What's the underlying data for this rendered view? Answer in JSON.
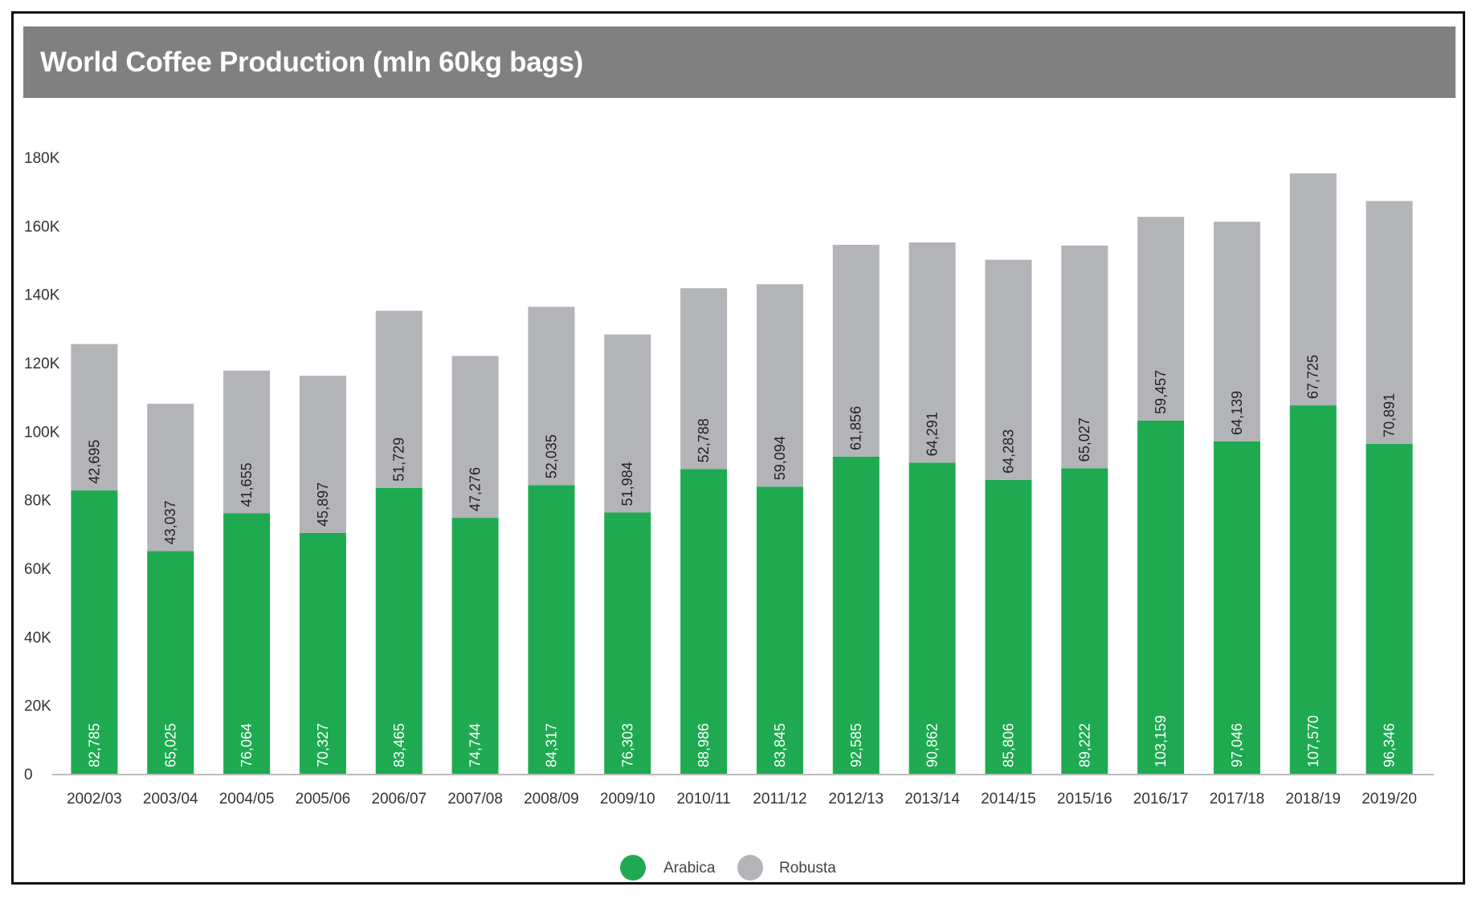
{
  "title": "World Coffee Production (mln 60kg bags)",
  "colors": {
    "arabica": "#1faa52",
    "robusta": "#b3b4b7",
    "title_bar": "#7f807f",
    "axis": "#bbbbbb"
  },
  "chart_data": {
    "type": "bar",
    "stacked": true,
    "title": "World Coffee Production (mln 60kg bags)",
    "categories": [
      "2002/03",
      "2003/04",
      "2004/05",
      "2005/06",
      "2006/07",
      "2007/08",
      "2008/09",
      "2009/10",
      "2010/11",
      "2011/12",
      "2012/13",
      "2013/14",
      "2014/15",
      "2015/16",
      "2016/17",
      "2017/18",
      "2018/19",
      "2019/20"
    ],
    "series": [
      {
        "name": "Arabica",
        "values": [
          82785,
          65025,
          76064,
          70327,
          83465,
          74744,
          84317,
          76303,
          88986,
          83845,
          92585,
          90862,
          85806,
          89222,
          103159,
          97046,
          107570,
          96346
        ],
        "labels": [
          "82,785",
          "65,025",
          "76,064",
          "70,327",
          "83,465",
          "74,744",
          "84,317",
          "76,303",
          "88,986",
          "83,845",
          "92,585",
          "90,862",
          "85,806",
          "89,222",
          "103,159",
          "97,046",
          "107,570",
          "96,346"
        ]
      },
      {
        "name": "Robusta",
        "values": [
          42695,
          43037,
          41655,
          45897,
          51729,
          47276,
          52035,
          51984,
          52788,
          59094,
          61856,
          64291,
          64283,
          65027,
          59457,
          64139,
          67725,
          70891
        ],
        "labels": [
          "42,695",
          "43,037",
          "41,655",
          "45,897",
          "51,729",
          "47,276",
          "52,035",
          "51,984",
          "52,788",
          "59,094",
          "61,856",
          "64,291",
          "64,283",
          "65,027",
          "59,457",
          "64,139",
          "67,725",
          "70,891"
        ]
      }
    ],
    "yticks": [
      0,
      20000,
      40000,
      60000,
      80000,
      100000,
      120000,
      140000,
      160000,
      180000
    ],
    "ytick_labels": [
      "0",
      "20K",
      "40K",
      "60K",
      "80K",
      "100K",
      "120K",
      "140K",
      "160K",
      "180K"
    ],
    "ylim": [
      0,
      180000
    ],
    "grid": false,
    "legend_position": "bottom-center"
  }
}
